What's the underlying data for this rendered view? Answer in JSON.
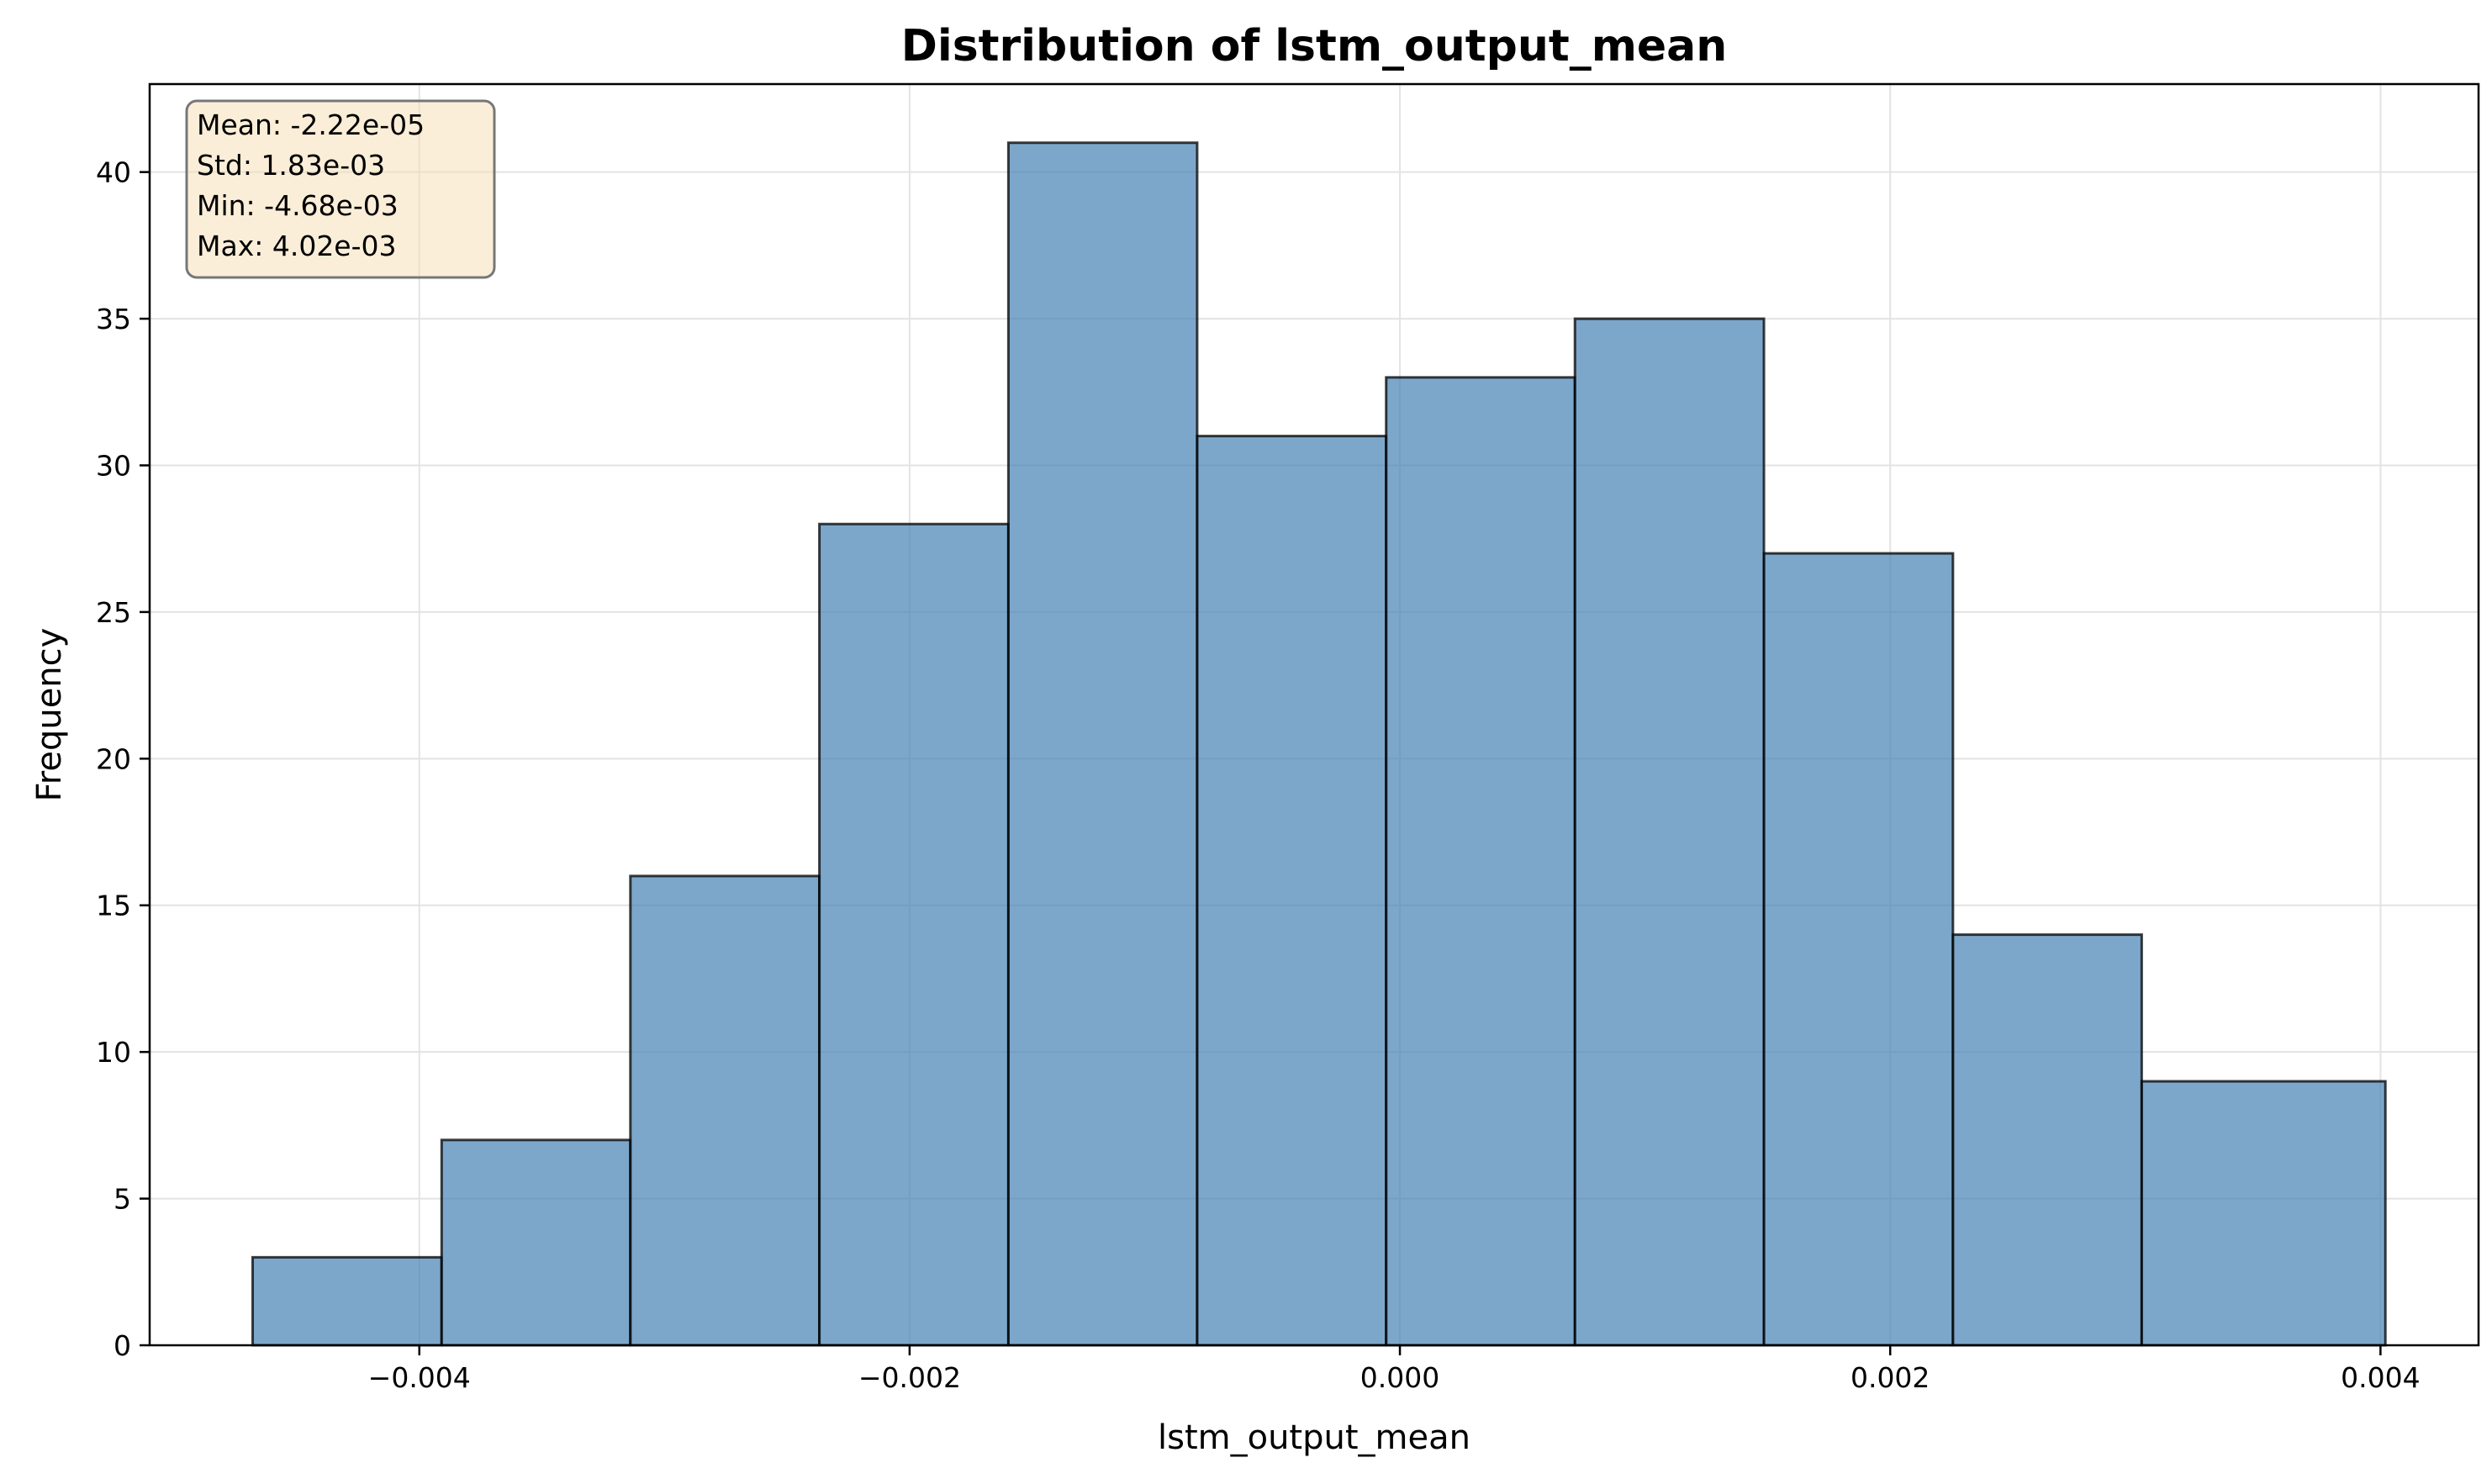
{
  "chart_data": {
    "type": "bar",
    "title": "Distribution of lstm_output_mean",
    "xlabel": "lstm_output_mean",
    "ylabel": "Frequency",
    "bin_edges": [
      -0.00468,
      -0.003909,
      -0.003139,
      -0.002368,
      -0.001597,
      -0.000827,
      -5.6e-05,
      0.000714,
      0.001485,
      0.002256,
      0.003026,
      0.00402
    ],
    "values": [
      3,
      7,
      16,
      28,
      41,
      31,
      33,
      35,
      27,
      14,
      9
    ],
    "xlim": [
      -0.0051,
      0.0044
    ],
    "ylim": [
      0,
      43
    ],
    "xticks": [
      -0.004,
      -0.002,
      0.0,
      0.002,
      0.004
    ],
    "xtick_labels": [
      "−0.004",
      "−0.002",
      "0.000",
      "0.002",
      "0.004"
    ],
    "yticks": [
      0,
      5,
      10,
      15,
      20,
      25,
      30,
      35,
      40
    ],
    "ytick_labels": [
      "0",
      "5",
      "10",
      "15",
      "20",
      "25",
      "30",
      "35",
      "40"
    ],
    "grid": true,
    "stats_box": [
      "Mean: -2.22e-05",
      "Std: 1.83e-03",
      "Min: -4.68e-03",
      "Max: 4.02e-03"
    ],
    "colors": {
      "bar_fill": "#4682b4",
      "bar_fill_opacity": 0.7,
      "bar_edge": "#000000",
      "grid": "#e3e3e3",
      "stats_box_fill": "#f5deb3",
      "stats_box_edge": "#777777"
    }
  }
}
